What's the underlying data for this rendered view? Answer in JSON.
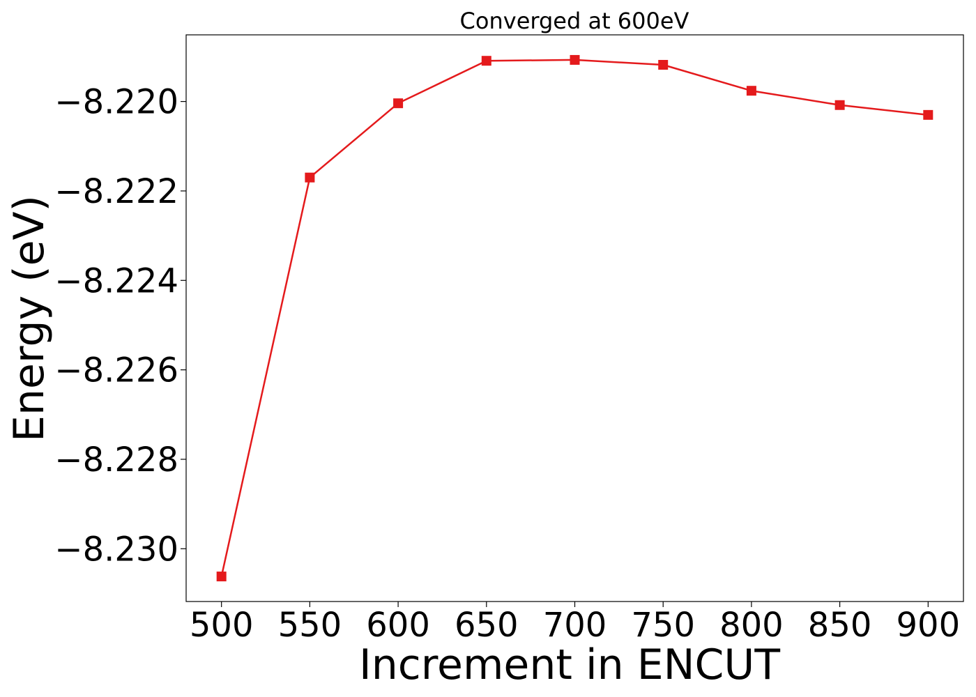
{
  "chart_data": {
    "type": "line",
    "title": "Converged at 600eV",
    "xlabel": "Increment in ENCUT",
    "ylabel": "Energy (eV)",
    "x": [
      500,
      550,
      600,
      650,
      700,
      750,
      800,
      850,
      900
    ],
    "series": [
      {
        "values": [
          -8.23062,
          -8.2217,
          -8.22004,
          -8.21909,
          -8.21907,
          -8.21918,
          -8.21976,
          -8.22008,
          -8.2203
        ],
        "color": "#e41a1c",
        "marker": "square"
      }
    ],
    "xticks": [
      500,
      550,
      600,
      650,
      700,
      750,
      800,
      850,
      900
    ],
    "xtick_labels": [
      "500",
      "550",
      "600",
      "650",
      "700",
      "750",
      "800",
      "850",
      "900"
    ],
    "yticks": [
      -8.22,
      -8.222,
      -8.224,
      -8.226,
      -8.228,
      -8.23
    ],
    "ytick_labels": [
      "−8.220",
      "−8.222",
      "−8.224",
      "−8.226",
      "−8.228",
      "−8.230"
    ],
    "xlim": [
      480,
      920
    ],
    "ylim": [
      -8.23118,
      -8.21851
    ],
    "grid": false,
    "legend": "none"
  }
}
